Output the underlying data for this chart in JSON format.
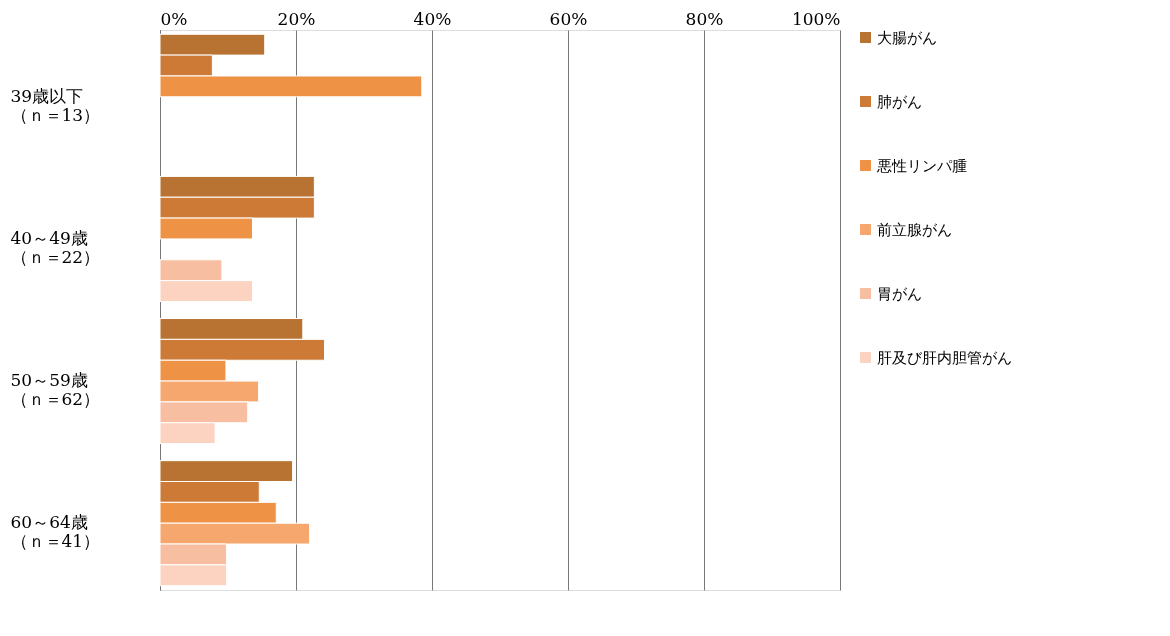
{
  "chart_data": {
    "type": "bar",
    "orientation": "horizontal",
    "categories": [
      "39歳以下（ｎ＝13）",
      "40～49歳（ｎ＝22）",
      "50～59歳（ｎ＝62）",
      "60～64歳（ｎ＝41）"
    ],
    "series": [
      {
        "name": "大腸がん",
        "color": "#b87333",
        "values": [
          15.4,
          22.7,
          21.0,
          19.5
        ]
      },
      {
        "name": "肺がん",
        "color": "#cc7a36",
        "values": [
          7.7,
          22.7,
          24.2,
          14.6
        ]
      },
      {
        "name": "悪性リンパ腫",
        "color": "#ee9346",
        "values": [
          38.5,
          13.6,
          9.7,
          17.1
        ]
      },
      {
        "name": "前立腺がん",
        "color": "#f6a76e",
        "values": [
          null,
          null,
          14.5,
          22.0
        ]
      },
      {
        "name": "胃がん",
        "color": "#f8bea2",
        "values": [
          null,
          9.1,
          12.9,
          9.8
        ]
      },
      {
        "name": "肝及び肝内胆管がん",
        "color": "#fbd3c0",
        "values": [
          null,
          13.6,
          8.1,
          9.8
        ]
      }
    ],
    "xlim": [
      0,
      100
    ],
    "xticks": [
      {
        "value": 0,
        "label": "0%"
      },
      {
        "value": 20,
        "label": "20%"
      },
      {
        "value": 40,
        "label": "40%"
      },
      {
        "value": 60,
        "label": "60%"
      },
      {
        "value": 80,
        "label": "80%"
      },
      {
        "value": 100,
        "label": "100%"
      }
    ],
    "grid": "x",
    "legend": "right"
  }
}
